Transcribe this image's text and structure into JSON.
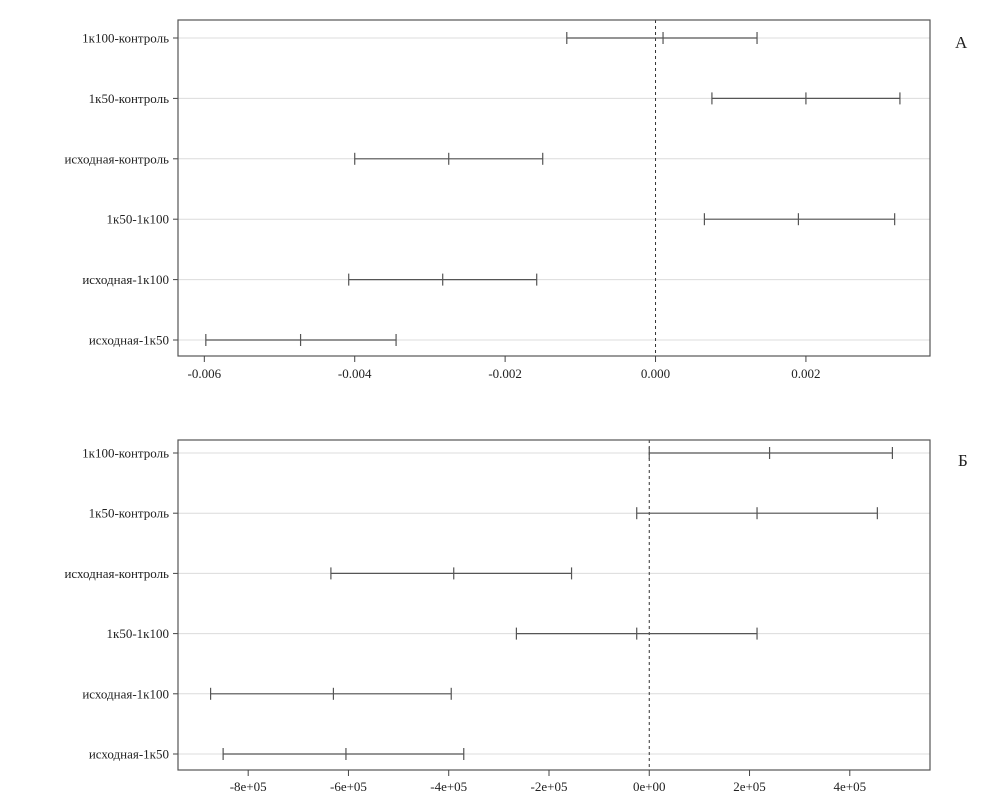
{
  "chart_data": [
    {
      "type": "errorbar",
      "panel_label": "А",
      "categories": [
        "1к100-контроль",
        "1к50-контроль",
        "исходная-контроль",
        "1к50-1к100",
        "исходная-1к100",
        "исходная-1к50"
      ],
      "estimates": [
        0.0001,
        0.002,
        -0.00275,
        0.0019,
        -0.00283,
        -0.00472
      ],
      "lower": [
        -0.00118,
        0.00075,
        -0.004,
        0.00065,
        -0.00408,
        -0.00598
      ],
      "upper": [
        0.00135,
        0.00325,
        -0.0015,
        0.00318,
        -0.00158,
        -0.00345
      ],
      "xlim": [
        -0.00635,
        0.00365
      ],
      "xticks": [
        -0.006,
        -0.004,
        -0.002,
        0.0,
        0.002
      ],
      "xtick_labels": [
        "-0.006",
        "-0.004",
        "-0.002",
        "0.000",
        "0.002"
      ],
      "reference_line": 0,
      "grid": true
    },
    {
      "type": "errorbar",
      "panel_label": "Б",
      "categories": [
        "1к100-контроль",
        "1к50-контроль",
        "исходная-контроль",
        "1к50-1к100",
        "исходная-1к100",
        "исходная-1к50"
      ],
      "estimates": [
        240000,
        215000,
        -390000,
        -25000,
        -630000,
        -605000
      ],
      "lower": [
        0,
        -25000,
        -635000,
        -265000,
        -875000,
        -850000
      ],
      "upper": [
        485000,
        455000,
        -155000,
        215000,
        -395000,
        -370000
      ],
      "xlim": [
        -940000,
        560000
      ],
      "xticks": [
        -800000,
        -600000,
        -400000,
        -200000,
        0,
        200000,
        400000
      ],
      "xtick_labels": [
        "-8e+05",
        "-6e+05",
        "-4e+05",
        "-2e+05",
        "0e+00",
        "2e+05",
        "4e+05"
      ],
      "reference_line": 0,
      "grid": true
    }
  ]
}
